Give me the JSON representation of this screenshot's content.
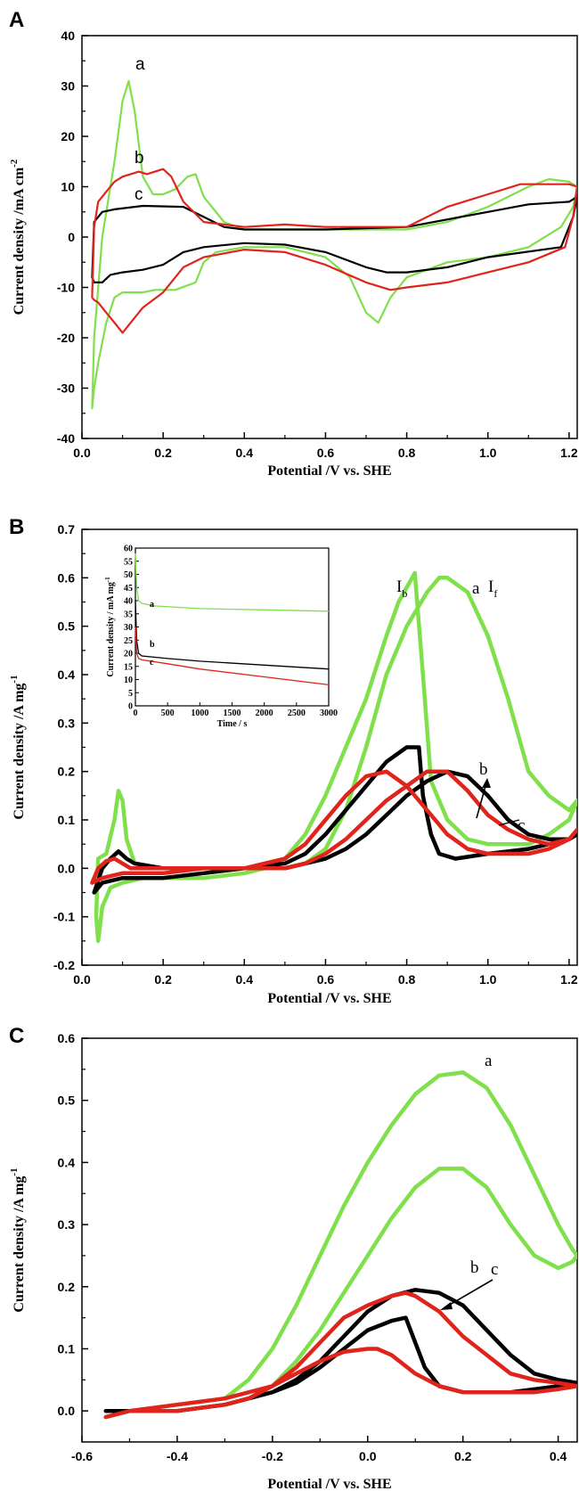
{
  "colors": {
    "a": "#7fe04c",
    "b": "#000000",
    "c": "#e0241c"
  },
  "chart_data": [
    {
      "panel": "A",
      "type": "line",
      "xlabel": "Potential /V vs. SHE",
      "ylabel": "Current density /mA cm",
      "ylabel_sup": "-2",
      "xlim": [
        0.0,
        1.22
      ],
      "ylim": [
        -40,
        40
      ],
      "xticks": [
        "0.0",
        "0.2",
        "0.4",
        "0.6",
        "0.8",
        "1.0",
        "1.2"
      ],
      "yticks": [
        "-40",
        "-30",
        "-20",
        "-10",
        "0",
        "10",
        "20",
        "30",
        "40"
      ],
      "labels": [
        "a",
        "b",
        "c"
      ],
      "series": [
        {
          "id": "a",
          "color_key": "a",
          "x": [
            0.025,
            0.03,
            0.05,
            0.08,
            0.1,
            0.115,
            0.13,
            0.15,
            0.175,
            0.2,
            0.23,
            0.26,
            0.28,
            0.3,
            0.35,
            0.4,
            0.5,
            0.6,
            0.7,
            0.8,
            0.9,
            1.0,
            1.1,
            1.15,
            1.2,
            1.22,
            1.21,
            1.18,
            1.1,
            1.0,
            0.9,
            0.8,
            0.76,
            0.73,
            0.7,
            0.66,
            0.6,
            0.5,
            0.4,
            0.33,
            0.3,
            0.28,
            0.23,
            0.18,
            0.15,
            0.12,
            0.1,
            0.08,
            0.06,
            0.04,
            0.03,
            0.025
          ],
          "y": [
            -34,
            -20,
            0,
            15,
            27,
            31,
            25,
            12,
            8.5,
            8.5,
            9.5,
            12,
            12.5,
            8,
            3,
            1.5,
            1.5,
            1.5,
            1.5,
            1.5,
            3,
            6,
            10,
            11.5,
            11,
            10,
            6,
            2,
            -2,
            -4,
            -5,
            -8,
            -12,
            -17,
            -15,
            -8,
            -4,
            -2,
            -2,
            -3,
            -5,
            -9,
            -10.5,
            -10.5,
            -11,
            -11,
            -11,
            -12,
            -17,
            -25,
            -30,
            -34
          ]
        },
        {
          "id": "b",
          "color_key": "b",
          "x": [
            0.025,
            0.03,
            0.05,
            0.08,
            0.15,
            0.25,
            0.3,
            0.35,
            0.4,
            0.6,
            0.8,
            1.0,
            1.1,
            1.2,
            1.22,
            1.21,
            1.18,
            1.0,
            0.9,
            0.8,
            0.75,
            0.7,
            0.6,
            0.5,
            0.4,
            0.3,
            0.25,
            0.2,
            0.15,
            0.1,
            0.07,
            0.05,
            0.03,
            0.025
          ],
          "y": [
            -8,
            3,
            5,
            5.5,
            6.2,
            6,
            4,
            2,
            1.5,
            1.5,
            2,
            5,
            6.5,
            7,
            8,
            4,
            -2,
            -4,
            -6,
            -7,
            -7,
            -6,
            -3,
            -1.5,
            -1.2,
            -2,
            -3,
            -5.5,
            -6.5,
            -7,
            -7.5,
            -9,
            -9,
            -8
          ]
        },
        {
          "id": "c",
          "color_key": "c",
          "x": [
            0.025,
            0.03,
            0.04,
            0.06,
            0.08,
            0.1,
            0.12,
            0.14,
            0.16,
            0.18,
            0.2,
            0.22,
            0.25,
            0.3,
            0.35,
            0.4,
            0.5,
            0.6,
            0.7,
            0.8,
            0.9,
            1.0,
            1.08,
            1.15,
            1.2,
            1.22,
            1.21,
            1.19,
            1.1,
            1.0,
            0.9,
            0.8,
            0.76,
            0.7,
            0.6,
            0.5,
            0.4,
            0.3,
            0.25,
            0.2,
            0.15,
            0.12,
            0.1,
            0.08,
            0.06,
            0.04,
            0.03,
            0.025
          ],
          "y": [
            -12,
            2,
            7,
            9,
            11,
            12,
            12.5,
            13,
            12.5,
            13,
            13.5,
            12,
            7,
            3,
            2.5,
            2,
            2.5,
            2,
            2,
            2,
            6,
            8.5,
            10.5,
            10.5,
            10.5,
            10,
            4,
            -2,
            -5,
            -7,
            -9,
            -10,
            -10.5,
            -9,
            -5.5,
            -3,
            -2.5,
            -4,
            -6,
            -11,
            -14,
            -17,
            -19,
            -17,
            -15,
            -13,
            -12.5,
            -12
          ]
        }
      ]
    },
    {
      "panel": "B",
      "type": "line",
      "xlabel": "Potential /V vs. SHE",
      "ylabel": "Current density /A mg",
      "ylabel_sup": "-1",
      "xlim": [
        0.0,
        1.22
      ],
      "ylim": [
        -0.2,
        0.7
      ],
      "xticks": [
        "0.0",
        "0.2",
        "0.4",
        "0.6",
        "0.8",
        "1.0",
        "1.2"
      ],
      "yticks": [
        "-0.2",
        "-0.1",
        "0.0",
        "0.1",
        "0.2",
        "0.3",
        "0.4",
        "0.5",
        "0.6",
        "0.7"
      ],
      "labels": [
        "a",
        "b",
        "c"
      ],
      "peak_labels": [
        "I",
        "b",
        "I",
        "f"
      ],
      "series": [
        {
          "id": "a",
          "color_key": "a",
          "x": [
            0.035,
            0.04,
            0.06,
            0.08,
            0.09,
            0.1,
            0.11,
            0.13,
            0.2,
            0.3,
            0.4,
            0.5,
            0.55,
            0.6,
            0.65,
            0.7,
            0.75,
            0.8,
            0.85,
            0.88,
            0.9,
            0.95,
            1.0,
            1.05,
            1.1,
            1.15,
            1.2,
            1.22,
            1.2,
            1.15,
            1.1,
            1.05,
            1.0,
            0.95,
            0.9,
            0.86,
            0.84,
            0.82,
            0.78,
            0.75,
            0.7,
            0.65,
            0.6,
            0.55,
            0.5,
            0.45,
            0.4,
            0.3,
            0.2,
            0.15,
            0.1,
            0.07,
            0.05,
            0.04,
            0.035
          ],
          "y": [
            -0.1,
            0.02,
            0.03,
            0.1,
            0.16,
            0.14,
            0.06,
            0.01,
            0.0,
            0.0,
            0.0,
            0.0,
            0.01,
            0.04,
            0.12,
            0.25,
            0.4,
            0.5,
            0.57,
            0.6,
            0.6,
            0.57,
            0.48,
            0.35,
            0.2,
            0.15,
            0.12,
            0.14,
            0.1,
            0.07,
            0.05,
            0.05,
            0.05,
            0.06,
            0.1,
            0.18,
            0.4,
            0.61,
            0.55,
            0.48,
            0.35,
            0.25,
            0.15,
            0.07,
            0.02,
            0.0,
            -0.01,
            -0.02,
            -0.02,
            -0.02,
            -0.03,
            -0.04,
            -0.08,
            -0.15,
            -0.1
          ]
        },
        {
          "id": "b",
          "color_key": "b",
          "x": [
            0.03,
            0.05,
            0.07,
            0.09,
            0.11,
            0.13,
            0.2,
            0.3,
            0.4,
            0.5,
            0.6,
            0.65,
            0.7,
            0.75,
            0.8,
            0.85,
            0.9,
            0.95,
            1.0,
            1.05,
            1.1,
            1.15,
            1.2,
            1.22,
            1.2,
            1.15,
            1.1,
            1.0,
            0.92,
            0.88,
            0.86,
            0.84,
            0.83,
            0.8,
            0.75,
            0.7,
            0.65,
            0.6,
            0.55,
            0.5,
            0.4,
            0.3,
            0.2,
            0.1,
            0.05,
            0.03
          ],
          "y": [
            -0.05,
            0.0,
            0.02,
            0.035,
            0.02,
            0.01,
            0.0,
            0.0,
            0.0,
            0.0,
            0.02,
            0.04,
            0.07,
            0.11,
            0.15,
            0.18,
            0.2,
            0.19,
            0.15,
            0.1,
            0.07,
            0.06,
            0.06,
            0.07,
            0.06,
            0.05,
            0.04,
            0.03,
            0.02,
            0.03,
            0.07,
            0.15,
            0.25,
            0.25,
            0.22,
            0.17,
            0.12,
            0.07,
            0.03,
            0.01,
            0.0,
            -0.01,
            -0.02,
            -0.02,
            -0.03,
            -0.05
          ]
        },
        {
          "id": "c",
          "color_key": "c",
          "x": [
            0.025,
            0.04,
            0.06,
            0.08,
            0.1,
            0.12,
            0.2,
            0.3,
            0.4,
            0.5,
            0.55,
            0.6,
            0.65,
            0.7,
            0.75,
            0.8,
            0.85,
            0.9,
            0.95,
            1.0,
            1.05,
            1.1,
            1.15,
            1.2,
            1.22,
            1.2,
            1.15,
            1.1,
            1.0,
            0.95,
            0.9,
            0.85,
            0.8,
            0.75,
            0.7,
            0.65,
            0.6,
            0.55,
            0.5,
            0.4,
            0.3,
            0.2,
            0.1,
            0.05,
            0.025
          ],
          "y": [
            -0.03,
            0.0,
            0.015,
            0.02,
            0.01,
            0.0,
            0.0,
            0.0,
            0.0,
            0.0,
            0.01,
            0.03,
            0.06,
            0.1,
            0.14,
            0.17,
            0.2,
            0.2,
            0.16,
            0.11,
            0.08,
            0.06,
            0.05,
            0.06,
            0.08,
            0.06,
            0.04,
            0.03,
            0.03,
            0.04,
            0.07,
            0.12,
            0.17,
            0.2,
            0.19,
            0.15,
            0.1,
            0.05,
            0.02,
            0.0,
            0.0,
            -0.01,
            -0.01,
            -0.02,
            -0.03
          ]
        }
      ],
      "inset": {
        "type": "line",
        "xlabel": "Time / s",
        "ylabel": "Current density / mA mg",
        "ylabel_sup": "-1",
        "xlim": [
          0,
          3000
        ],
        "ylim": [
          0,
          60
        ],
        "xticks": [
          "0",
          "500",
          "1000",
          "1500",
          "2000",
          "2500",
          "3000"
        ],
        "yticks": [
          "0",
          "5",
          "10",
          "15",
          "20",
          "25",
          "30",
          "35",
          "40",
          "45",
          "50",
          "55",
          "60"
        ],
        "labels": [
          "a",
          "b",
          "c"
        ],
        "series": [
          {
            "id": "a",
            "color_key": "a",
            "x": [
              0,
              20,
              50,
              100,
              300,
              1000,
              2000,
              3000
            ],
            "y": [
              58,
              45,
              40,
              39,
              38,
              37,
              36.5,
              36
            ]
          },
          {
            "id": "b",
            "color_key": "b",
            "x": [
              0,
              20,
              50,
              100,
              500,
              1000,
              2000,
              3000
            ],
            "y": [
              40,
              25,
              20,
              19,
              18,
              17,
              15.5,
              14
            ]
          },
          {
            "id": "c",
            "color_key": "c",
            "x": [
              0,
              20,
              50,
              100,
              500,
              1000,
              2000,
              3000
            ],
            "y": [
              30,
              20,
              18,
              17.5,
              16,
              14,
              11,
              8
            ]
          }
        ]
      }
    },
    {
      "panel": "C",
      "type": "line",
      "xlabel": "Potential /V vs. SHE",
      "ylabel": "Current density /A mg",
      "ylabel_sup": "-1",
      "xlim": [
        -0.6,
        0.44
      ],
      "ylim": [
        -0.05,
        0.6
      ],
      "xticks": [
        "-0.6",
        "-0.4",
        "-0.2",
        "0.0",
        "0.2",
        "0.4"
      ],
      "yticks": [
        "0.0",
        "0.1",
        "0.2",
        "0.3",
        "0.4",
        "0.5",
        "0.6"
      ],
      "labels": [
        "a",
        "b",
        "c"
      ],
      "series": [
        {
          "id": "a",
          "color_key": "a",
          "x": [
            -0.55,
            -0.5,
            -0.4,
            -0.3,
            -0.25,
            -0.2,
            -0.15,
            -0.1,
            -0.05,
            0.0,
            0.05,
            0.1,
            0.15,
            0.2,
            0.25,
            0.3,
            0.35,
            0.4,
            0.43,
            0.44,
            0.43,
            0.4,
            0.35,
            0.3,
            0.25,
            0.2,
            0.15,
            0.1,
            0.05,
            0.0,
            -0.05,
            -0.1,
            -0.15,
            -0.2,
            -0.25,
            -0.3,
            -0.4,
            -0.5,
            -0.55
          ],
          "y": [
            -0.01,
            0.0,
            0.01,
            0.02,
            0.05,
            0.1,
            0.17,
            0.25,
            0.33,
            0.4,
            0.46,
            0.51,
            0.54,
            0.545,
            0.52,
            0.46,
            0.38,
            0.3,
            0.26,
            0.25,
            0.24,
            0.23,
            0.25,
            0.3,
            0.36,
            0.39,
            0.39,
            0.36,
            0.31,
            0.25,
            0.19,
            0.13,
            0.08,
            0.04,
            0.02,
            0.01,
            0.0,
            0.0,
            -0.01
          ]
        },
        {
          "id": "b",
          "color_key": "b",
          "x": [
            -0.55,
            -0.5,
            -0.4,
            -0.3,
            -0.25,
            -0.2,
            -0.15,
            -0.1,
            -0.05,
            0.0,
            0.05,
            0.1,
            0.15,
            0.2,
            0.25,
            0.3,
            0.35,
            0.4,
            0.44,
            0.4,
            0.35,
            0.3,
            0.25,
            0.2,
            0.15,
            0.12,
            0.1,
            0.08,
            0.05,
            0.0,
            -0.05,
            -0.1,
            -0.15,
            -0.2,
            -0.3,
            -0.4,
            -0.5,
            -0.55
          ],
          "y": [
            0.0,
            0.0,
            0.0,
            0.01,
            0.02,
            0.03,
            0.05,
            0.08,
            0.12,
            0.16,
            0.185,
            0.195,
            0.19,
            0.17,
            0.13,
            0.09,
            0.06,
            0.05,
            0.045,
            0.04,
            0.035,
            0.03,
            0.03,
            0.03,
            0.04,
            0.07,
            0.11,
            0.15,
            0.145,
            0.13,
            0.1,
            0.07,
            0.045,
            0.03,
            0.01,
            0.0,
            0.0,
            0.0
          ]
        },
        {
          "id": "c",
          "color_key": "c",
          "x": [
            -0.55,
            -0.5,
            -0.4,
            -0.3,
            -0.25,
            -0.2,
            -0.15,
            -0.1,
            -0.05,
            0.0,
            0.05,
            0.08,
            0.1,
            0.15,
            0.2,
            0.25,
            0.3,
            0.35,
            0.4,
            0.44,
            0.4,
            0.35,
            0.3,
            0.25,
            0.2,
            0.15,
            0.1,
            0.05,
            0.02,
            0.0,
            -0.05,
            -0.1,
            -0.15,
            -0.2,
            -0.3,
            -0.4,
            -0.5,
            -0.55
          ],
          "y": [
            -0.01,
            0.0,
            0.0,
            0.01,
            0.02,
            0.04,
            0.07,
            0.11,
            0.15,
            0.17,
            0.185,
            0.19,
            0.185,
            0.16,
            0.12,
            0.09,
            0.06,
            0.05,
            0.045,
            0.04,
            0.035,
            0.03,
            0.03,
            0.03,
            0.03,
            0.04,
            0.06,
            0.09,
            0.1,
            0.1,
            0.095,
            0.08,
            0.06,
            0.04,
            0.02,
            0.01,
            0.0,
            -0.01
          ]
        }
      ]
    }
  ]
}
